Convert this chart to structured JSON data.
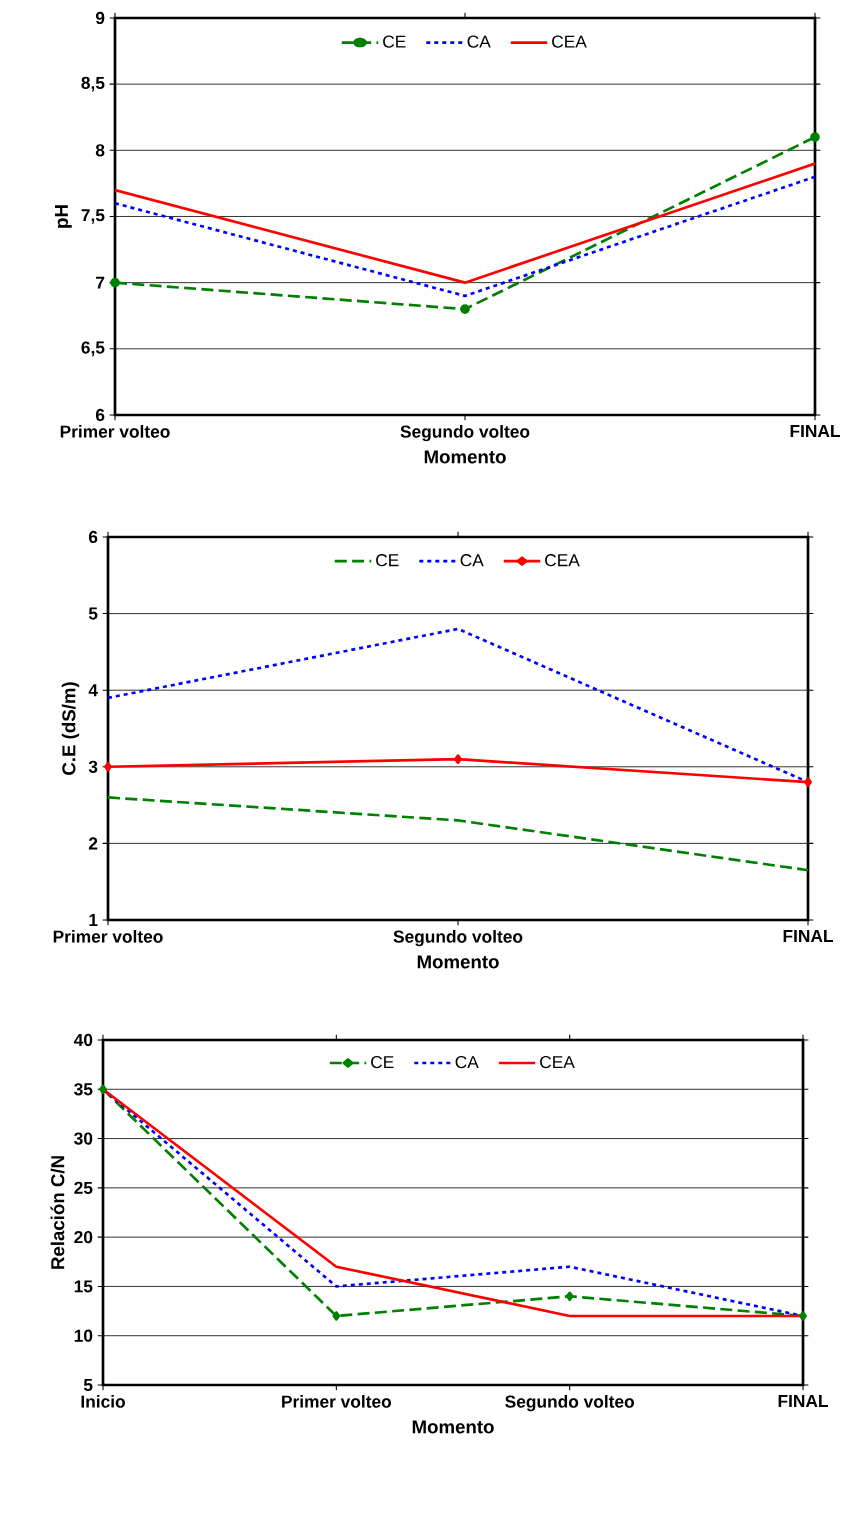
{
  "chart_data": [
    {
      "type": "line",
      "xlabel": "Momento",
      "ylabel": "pH",
      "categories": [
        "Primer volteo",
        "Segundo volteo",
        "FINAL"
      ],
      "ylim": [
        6,
        9
      ],
      "yticks": [
        6,
        {
          "value": 6.5,
          "label": "6,5"
        },
        7,
        {
          "value": 7.5,
          "label": "7,5"
        },
        8,
        {
          "value": 8.5,
          "label": "8,5"
        },
        9
      ],
      "grid": "y",
      "legend": "top",
      "series": [
        {
          "name": "CE",
          "color": "#008000",
          "values": [
            7.0,
            6.8,
            8.1
          ],
          "line_style": "dashed",
          "marker": "circle"
        },
        {
          "name": "CA",
          "color": "#0000ff",
          "values": [
            7.6,
            6.9,
            7.8
          ],
          "line_style": "dotted"
        },
        {
          "name": "CEA",
          "color": "#ff0000",
          "values": [
            7.7,
            7.0,
            7.9
          ],
          "line_style": "solid"
        }
      ]
    },
    {
      "type": "line",
      "xlabel": "Momento",
      "ylabel": "C.E (dS/m)",
      "categories": [
        "Primer volteo",
        "Segundo volteo",
        "FINAL"
      ],
      "ylim": [
        1,
        6
      ],
      "yticks": [
        1,
        2,
        3,
        4,
        5,
        6
      ],
      "grid": "y",
      "legend": "top",
      "series": [
        {
          "name": "CE",
          "color": "#008000",
          "values": [
            2.6,
            2.3,
            1.65
          ],
          "line_style": "dashed"
        },
        {
          "name": "CA",
          "color": "#0000ff",
          "values": [
            3.9,
            4.8,
            2.8
          ],
          "line_style": "dotted"
        },
        {
          "name": "CEA",
          "color": "#ff0000",
          "values": [
            3.0,
            3.1,
            2.8
          ],
          "line_style": "solid",
          "marker": "diamond"
        }
      ]
    },
    {
      "type": "line",
      "xlabel": "Momento",
      "ylabel": "Relación C/N",
      "categories": [
        "Inicio",
        "Primer volteo",
        "Segundo volteo",
        "FINAL"
      ],
      "ylim": [
        5,
        40
      ],
      "yticks": [
        5,
        10,
        15,
        20,
        25,
        30,
        35,
        40
      ],
      "grid": "y",
      "legend": "top",
      "series": [
        {
          "name": "CE",
          "color": "#008000",
          "values": [
            35,
            12,
            14,
            12
          ],
          "line_style": "dashed",
          "marker": "diamond"
        },
        {
          "name": "CA",
          "color": "#0000ff",
          "values": [
            35,
            15,
            17,
            12
          ],
          "line_style": "dotted"
        },
        {
          "name": "CEA",
          "color": "#ff0000",
          "values": [
            35,
            17,
            12,
            12
          ],
          "line_style": "solid"
        }
      ]
    }
  ]
}
